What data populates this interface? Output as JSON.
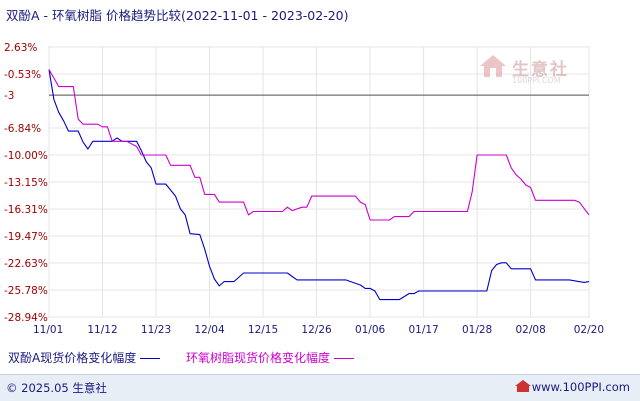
{
  "title": "双酚A - 环氧树脂 价格趋势比较(2022-11-01 - 2023-02-20)",
  "watermark": {
    "name": "生意社",
    "url": "100PPI.COM"
  },
  "legend": [
    {
      "label": "双酚A现货价格变化幅度",
      "color": "#0000cc"
    },
    {
      "label": "环氧树脂现货价格变化幅度",
      "color": "#cc00cc"
    }
  ],
  "footer": {
    "copyright": "© 2025.05 生意社",
    "url": "www.100PPI.com"
  },
  "chart_data": {
    "type": "line",
    "ylim": [
      -28.94,
      2.63
    ],
    "y_ticks": [
      "2.63%",
      "-0.53%",
      "-3",
      "-6.84%",
      "-10.00%",
      "-13.15%",
      "-16.31%",
      "-19.47%",
      "-22.63%",
      "-25.78%",
      "-28.94%"
    ],
    "y_tick_values": [
      2.63,
      -0.53,
      -3,
      -6.84,
      -10.0,
      -13.15,
      -16.31,
      -19.47,
      -22.63,
      -25.78,
      -28.94
    ],
    "reference_line": -3,
    "x_range": [
      "2022-11-01",
      "2023-02-20"
    ],
    "x_ticks": [
      "11/01",
      "11/12",
      "11/23",
      "12/04",
      "12/15",
      "12/26",
      "01/06",
      "01/17",
      "01/28",
      "02/08",
      "02/20"
    ],
    "x_tick_dates": [
      "2022-11-01",
      "2022-11-12",
      "2022-11-23",
      "2022-12-04",
      "2022-12-15",
      "2022-12-26",
      "2023-01-06",
      "2023-01-17",
      "2023-01-28",
      "2023-02-08",
      "2023-02-20"
    ],
    "grid": true,
    "series": [
      {
        "name": "双酚A现货价格变化幅度",
        "color": "#0000cc",
        "x": [
          "2022-11-01",
          "2022-11-02",
          "2022-11-03",
          "2022-11-04",
          "2022-11-05",
          "2022-11-07",
          "2022-11-08",
          "2022-11-09",
          "2022-11-10",
          "2022-11-11",
          "2022-11-12",
          "2022-11-14",
          "2022-11-15",
          "2022-11-16",
          "2022-11-17",
          "2022-11-19",
          "2022-11-20",
          "2022-11-21",
          "2022-11-22",
          "2022-11-23",
          "2022-11-25",
          "2022-11-27",
          "2022-11-28",
          "2022-11-29",
          "2022-11-30",
          "2022-12-02",
          "2022-12-03",
          "2022-12-04",
          "2022-12-05",
          "2022-12-06",
          "2022-12-07",
          "2022-12-08",
          "2022-12-09",
          "2022-12-11",
          "2022-12-12",
          "2022-12-13",
          "2022-12-20",
          "2022-12-21",
          "2022-12-22",
          "2022-12-31",
          "2023-01-01",
          "2023-01-02",
          "2023-01-04",
          "2023-01-05",
          "2023-01-06",
          "2023-01-07",
          "2023-01-08",
          "2023-01-11",
          "2023-01-12",
          "2023-01-14",
          "2023-01-15",
          "2023-01-16",
          "2023-01-17",
          "2023-01-18",
          "2023-01-30",
          "2023-01-31",
          "2023-02-01",
          "2023-02-02",
          "2023-02-03",
          "2023-02-04",
          "2023-02-08",
          "2023-02-09",
          "2023-02-15",
          "2023-02-16",
          "2023-02-19",
          "2023-02-20"
        ],
        "values": [
          0.0,
          -3.5,
          -5.0,
          -6.0,
          -7.2,
          -7.2,
          -8.5,
          -9.3,
          -8.4,
          -8.4,
          -8.4,
          -8.4,
          -8.0,
          -8.4,
          -8.4,
          -8.4,
          -9.5,
          -10.8,
          -11.5,
          -13.4,
          -13.4,
          -14.8,
          -16.3,
          -17.0,
          -19.2,
          -19.3,
          -21.0,
          -23.0,
          -24.5,
          -25.3,
          -24.8,
          -24.8,
          -24.8,
          -23.8,
          -23.8,
          -23.8,
          -23.8,
          -24.2,
          -24.6,
          -24.6,
          -24.6,
          -24.8,
          -25.2,
          -25.6,
          -25.6,
          -25.9,
          -26.9,
          -26.9,
          -26.9,
          -26.2,
          -26.2,
          -25.9,
          -25.9,
          -25.9,
          -25.9,
          -23.5,
          -22.8,
          -22.6,
          -22.6,
          -23.3,
          -23.3,
          -24.6,
          -24.6,
          -24.6,
          -24.9,
          -24.8
        ]
      },
      {
        "name": "环氧树脂现货价格变化幅度",
        "color": "#cc00cc",
        "x": [
          "2022-11-01",
          "2022-11-02",
          "2022-11-03",
          "2022-11-05",
          "2022-11-06",
          "2022-11-07",
          "2022-11-08",
          "2022-11-11",
          "2022-11-12",
          "2022-11-13",
          "2022-11-14",
          "2022-11-15",
          "2022-11-16",
          "2022-11-17",
          "2022-11-19",
          "2022-11-20",
          "2022-11-21",
          "2022-11-25",
          "2022-11-26",
          "2022-11-27",
          "2022-11-30",
          "2022-12-01",
          "2022-12-02",
          "2022-12-03",
          "2022-12-05",
          "2022-12-06",
          "2022-12-07",
          "2022-12-11",
          "2022-12-12",
          "2022-12-13",
          "2022-12-14",
          "2022-12-19",
          "2022-12-20",
          "2022-12-21",
          "2022-12-23",
          "2022-12-24",
          "2022-12-25",
          "2023-01-03",
          "2023-01-04",
          "2023-01-05",
          "2023-01-06",
          "2023-01-10",
          "2023-01-11",
          "2023-01-14",
          "2023-01-15",
          "2023-01-26",
          "2023-01-27",
          "2023-01-28",
          "2023-02-03",
          "2023-02-04",
          "2023-02-05",
          "2023-02-06",
          "2023-02-07",
          "2023-02-08",
          "2023-02-09",
          "2023-02-17",
          "2023-02-18",
          "2023-02-20"
        ],
        "values": [
          0.0,
          -1.0,
          -2.0,
          -2.0,
          -2.0,
          -5.8,
          -6.4,
          -6.4,
          -6.7,
          -6.7,
          -8.4,
          -8.4,
          -8.4,
          -8.4,
          -9.0,
          -10.0,
          -10.0,
          -10.0,
          -11.2,
          -11.2,
          -11.2,
          -12.6,
          -12.6,
          -14.6,
          -14.6,
          -15.5,
          -15.5,
          -15.5,
          -17.0,
          -16.6,
          -16.6,
          -16.6,
          -16.1,
          -16.5,
          -16.1,
          -16.1,
          -14.8,
          -14.8,
          -15.5,
          -15.8,
          -17.6,
          -17.6,
          -17.2,
          -17.2,
          -16.6,
          -16.6,
          -14.3,
          -10.0,
          -10.0,
          -11.5,
          -12.3,
          -12.8,
          -13.5,
          -13.8,
          -15.3,
          -15.3,
          -15.5,
          -17.0
        ]
      }
    ]
  }
}
